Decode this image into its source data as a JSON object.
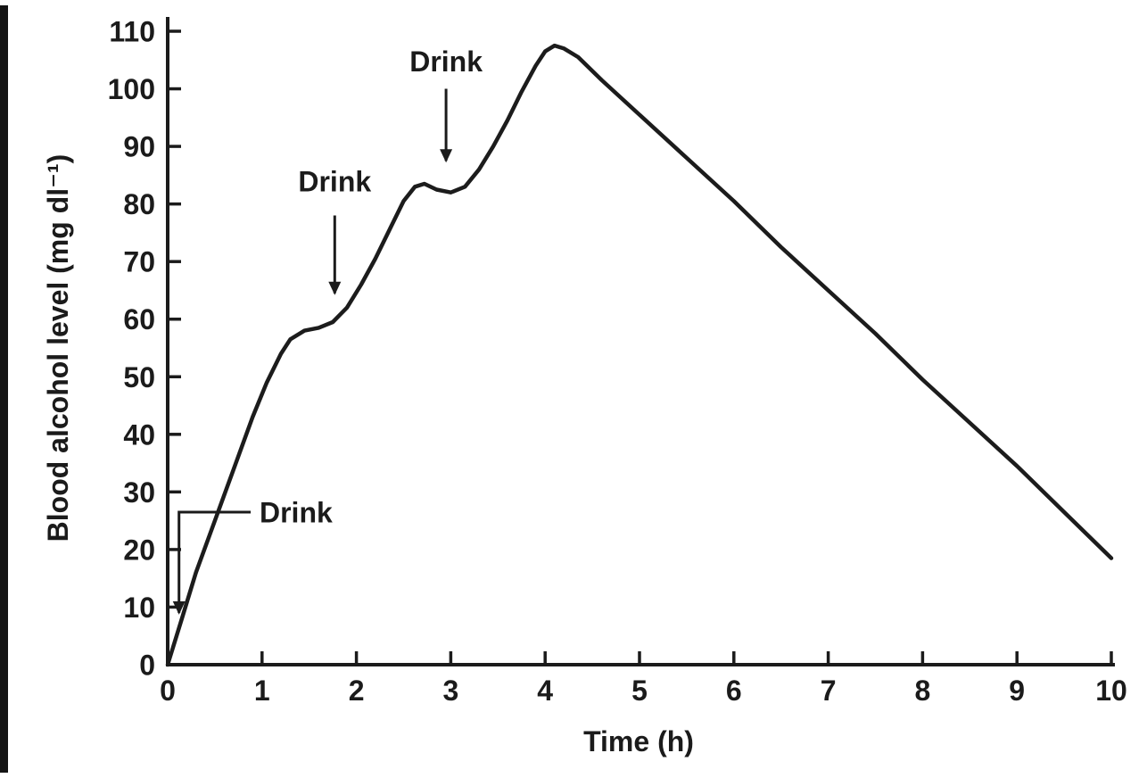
{
  "chart_data": {
    "type": "line",
    "title": "",
    "xlabel": "Time (h)",
    "ylabel": "Blood alcohol level (mg dl⁻¹)",
    "xlim": [
      0,
      10
    ],
    "ylim": [
      0,
      110
    ],
    "xticks": [
      0,
      1,
      2,
      3,
      4,
      5,
      6,
      7,
      8,
      9,
      10
    ],
    "yticks": [
      0,
      10,
      20,
      30,
      40,
      50,
      60,
      70,
      80,
      90,
      100,
      110
    ],
    "grid": false,
    "legend": "none",
    "line_color": "#1c1c1c",
    "axis_color": "#1b1b1b",
    "text_color": "#1b1b1b",
    "background_color": "#ffffff",
    "series": [
      {
        "name": "blood-alcohol-level",
        "points": [
          [
            0,
            0
          ],
          [
            0.15,
            8
          ],
          [
            0.3,
            16
          ],
          [
            0.5,
            25
          ],
          [
            0.7,
            34
          ],
          [
            0.9,
            43
          ],
          [
            1.05,
            49
          ],
          [
            1.2,
            54
          ],
          [
            1.3,
            56.5
          ],
          [
            1.45,
            58
          ],
          [
            1.6,
            58.5
          ],
          [
            1.75,
            59.5
          ],
          [
            1.9,
            62
          ],
          [
            2.05,
            66
          ],
          [
            2.2,
            70.5
          ],
          [
            2.35,
            75.5
          ],
          [
            2.5,
            80.5
          ],
          [
            2.62,
            83
          ],
          [
            2.72,
            83.5
          ],
          [
            2.85,
            82.5
          ],
          [
            3.0,
            82
          ],
          [
            3.15,
            83
          ],
          [
            3.3,
            86
          ],
          [
            3.45,
            90
          ],
          [
            3.6,
            94.5
          ],
          [
            3.75,
            99.5
          ],
          [
            3.9,
            104
          ],
          [
            4.0,
            106.5
          ],
          [
            4.1,
            107.5
          ],
          [
            4.2,
            107
          ],
          [
            4.35,
            105.5
          ],
          [
            4.6,
            101.5
          ],
          [
            5.0,
            95.5
          ],
          [
            5.5,
            88
          ],
          [
            6.0,
            80.5
          ],
          [
            6.5,
            72.5
          ],
          [
            7.0,
            65
          ],
          [
            7.5,
            57.5
          ],
          [
            8.0,
            49.5
          ],
          [
            8.5,
            42
          ],
          [
            9.0,
            34.5
          ],
          [
            9.5,
            26.5
          ],
          [
            10.0,
            18.5
          ]
        ]
      }
    ],
    "annotations": [
      {
        "label": "Drink",
        "label_pos": [
          1.36,
          26.5
        ],
        "arrow_points": [
          [
            0.88,
            26.5
          ],
          [
            0.12,
            26.5
          ],
          [
            0.12,
            9
          ]
        ]
      },
      {
        "label": "Drink",
        "label_pos": [
          1.77,
          84
        ],
        "arrow_points": [
          [
            1.77,
            78
          ],
          [
            1.77,
            64.5
          ]
        ]
      },
      {
        "label": "Drink",
        "label_pos": [
          2.95,
          104.8
        ],
        "arrow_points": [
          [
            2.95,
            100
          ],
          [
            2.95,
            87.5
          ]
        ]
      }
    ]
  }
}
